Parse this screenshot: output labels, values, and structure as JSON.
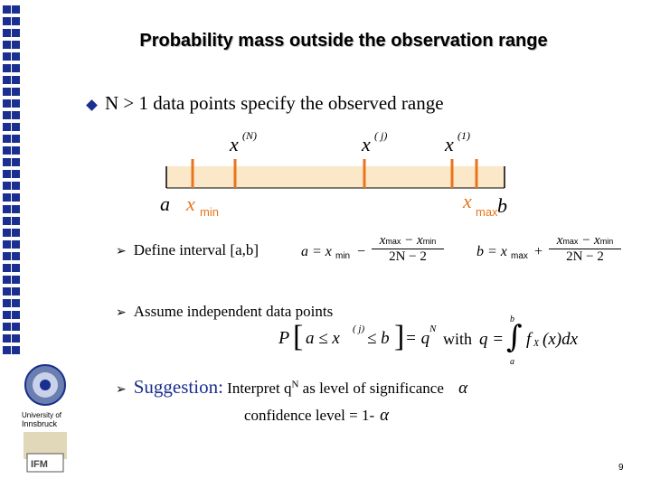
{
  "title": "Probability mass outside the observation range",
  "bullet": "N > 1 data points specify the observed range",
  "diagram": {
    "label_xN": "x",
    "sup_xN": "(N)",
    "label_xj": "x",
    "sup_xj": "( j)",
    "label_x1": "x",
    "sup_x1": "(1)",
    "label_a": "a",
    "label_b": "b",
    "label_xmin_x": "x",
    "label_xmin_sub": "min",
    "label_xmax_x": "x",
    "label_xmax_sub": "max",
    "band_color": "#fbe8c8",
    "tick_color": "#e8741c",
    "label_color": "#e8741c"
  },
  "items": [
    {
      "text": "Define interval [a,b]"
    },
    {
      "text": "Assume independent data points"
    },
    {
      "lead": "Suggestion:",
      "text": " Interpret q",
      "sup": "N",
      "tail": " as level of significance"
    }
  ],
  "confidence": "confidence level = 1-",
  "formulas": {
    "a_lhs": "a = x",
    "b_lhs": "b = x",
    "min": "min",
    "max": "max",
    "minus": "−",
    "plus": "+",
    "num_x1": "x",
    "num_minus": " − x",
    "den": "2N − 2",
    "prob_P": "P",
    "prob_body": "a ≤ x",
    "prob_sup": "( j)",
    "prob_le": " ≤ b",
    "prob_eq": " = q",
    "prob_N": "N",
    "with": "with",
    "q_eq": "q =",
    "integral_top": "b",
    "integral_bot": "a",
    "integrand": "f",
    "integrand_sub": "X",
    "integrand_rest": "(x)dx"
  },
  "alpha": "α",
  "page_number": "9",
  "logo": {
    "line1": "University of",
    "line2": "Innsbruck",
    "mark": "IFM"
  }
}
